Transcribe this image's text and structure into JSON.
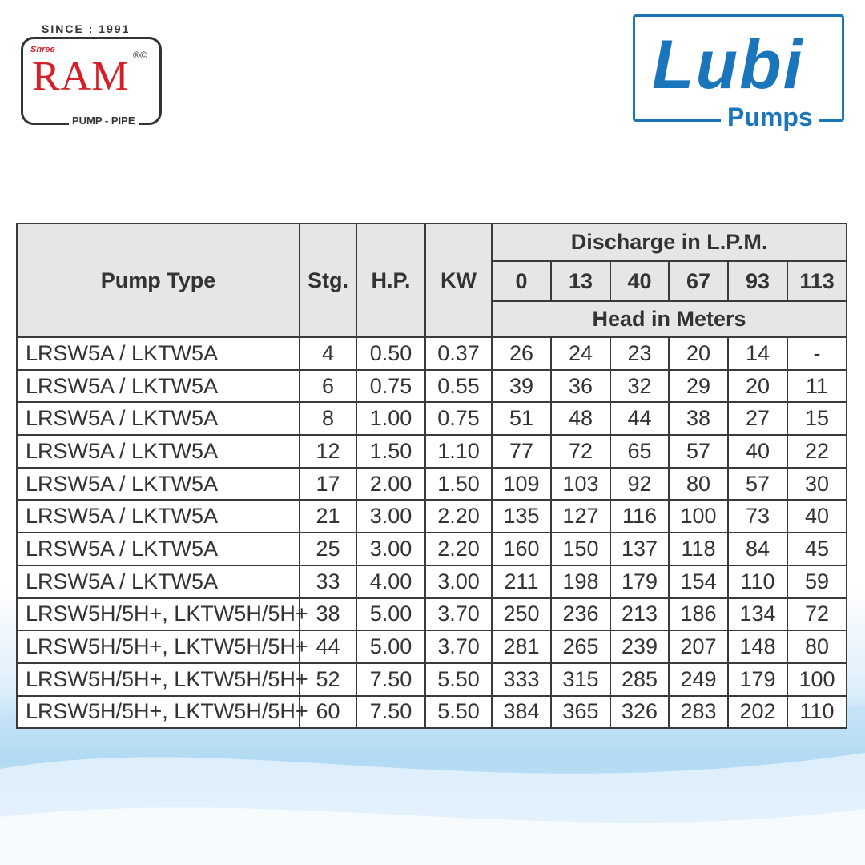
{
  "logo_left": {
    "since": "SINCE : 1991",
    "shree": "Shree",
    "brand": "RAM",
    "mark": "®©",
    "tagline": "PUMP - PIPE"
  },
  "logo_right": {
    "brand": "Lubi",
    "tagline": "Pumps"
  },
  "table": {
    "headers": {
      "pump_type": "Pump Type",
      "stages": "Stg.",
      "hp": "H.P.",
      "kw": "KW",
      "discharge": "Discharge in L.P.M.",
      "flows": [
        "0",
        "13",
        "40",
        "67",
        "93",
        "113"
      ],
      "head": "Head in Meters"
    },
    "rows": [
      [
        "LRSW5A / LKTW5A",
        "4",
        "0.50",
        "0.37",
        "26",
        "24",
        "23",
        "20",
        "14",
        "-"
      ],
      [
        "LRSW5A / LKTW5A",
        "6",
        "0.75",
        "0.55",
        "39",
        "36",
        "32",
        "29",
        "20",
        "11"
      ],
      [
        "LRSW5A / LKTW5A",
        "8",
        "1.00",
        "0.75",
        "51",
        "48",
        "44",
        "38",
        "27",
        "15"
      ],
      [
        "LRSW5A / LKTW5A",
        "12",
        "1.50",
        "1.10",
        "77",
        "72",
        "65",
        "57",
        "40",
        "22"
      ],
      [
        "LRSW5A / LKTW5A",
        "17",
        "2.00",
        "1.50",
        "109",
        "103",
        "92",
        "80",
        "57",
        "30"
      ],
      [
        "LRSW5A / LKTW5A",
        "21",
        "3.00",
        "2.20",
        "135",
        "127",
        "116",
        "100",
        "73",
        "40"
      ],
      [
        "LRSW5A / LKTW5A",
        "25",
        "3.00",
        "2.20",
        "160",
        "150",
        "137",
        "118",
        "84",
        "45"
      ],
      [
        "LRSW5A / LKTW5A",
        "33",
        "4.00",
        "3.00",
        "211",
        "198",
        "179",
        "154",
        "110",
        "59"
      ],
      [
        "LRSW5H/5H+, LKTW5H/5H+",
        "38",
        "5.00",
        "3.70",
        "250",
        "236",
        "213",
        "186",
        "134",
        "72"
      ],
      [
        "LRSW5H/5H+, LKTW5H/5H+",
        "44",
        "5.00",
        "3.70",
        "281",
        "265",
        "239",
        "207",
        "148",
        "80"
      ],
      [
        "LRSW5H/5H+, LKTW5H/5H+",
        "52",
        "7.50",
        "5.50",
        "333",
        "315",
        "285",
        "249",
        "179",
        "100"
      ],
      [
        "LRSW5H/5H+, LKTW5H/5H+",
        "60",
        "7.50",
        "5.50",
        "384",
        "365",
        "326",
        "283",
        "202",
        "110"
      ]
    ]
  }
}
